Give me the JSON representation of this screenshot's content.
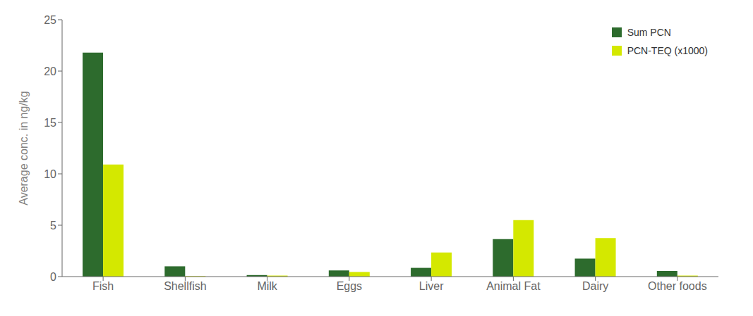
{
  "chart_data": {
    "type": "bar",
    "categories": [
      "Fish",
      "Shellfish",
      "Milk",
      "Eggs",
      "Liver",
      "Animal Fat",
      "Dairy",
      "Other foods"
    ],
    "series": [
      {
        "name": "Sum PCN",
        "color": "#2d6b2d",
        "values": [
          21.8,
          1.0,
          0.15,
          0.6,
          0.85,
          3.65,
          1.75,
          0.55
        ]
      },
      {
        "name": "PCN-TEQ (x1000)",
        "color": "#d4e800",
        "values": [
          10.9,
          0.05,
          0.1,
          0.45,
          2.35,
          5.5,
          3.75,
          0.1
        ]
      }
    ],
    "ylabel": "Average conc. in ng/kg",
    "ylim": [
      0,
      25
    ],
    "yticks": [
      0,
      5,
      10,
      15,
      20,
      25
    ],
    "grid": false,
    "legend": "upper right"
  }
}
